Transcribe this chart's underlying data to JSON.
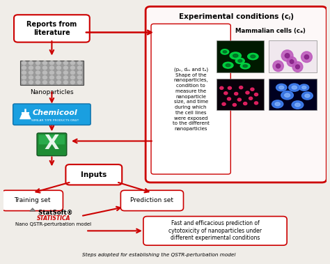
{
  "fig_width": 4.74,
  "fig_height": 3.79,
  "bg_color": "#f0ede8",
  "red_color": "#cc0000",
  "box_facecolor": "#ffffff",
  "blue_box_color": "#1a9fe0",
  "title_text": "Experimental conditions (cⱼ)",
  "reports_text": "Reports from\nliterature",
  "nanoparticles_text": "Nanoparticles",
  "inputs_text": "Inputs",
  "training_text": "Training set",
  "prediction_text": "Prediction set",
  "nano_qstr_text": "Nano QSTR-perturbation model",
  "fast_text": "Fast and efficacious prediction of\ncytotoxicity of nanoparticles under\ndifferent experimental conditions",
  "mammalian_text": "Mammalian cells (cₐ)",
  "desc_text": "(pₑ, dₘ and tₐ)\nShape of the\nnanoparticles,\ncondition to\nmeasure the\nnanoparticle\nsize, and time\nduring which\nthe cell lines\nwere exposed\nto the different\nnanoparticles",
  "bottom_text": "Steps adopted for establishing the QSTR-perturbation model",
  "arrow_color": "#cc0000"
}
